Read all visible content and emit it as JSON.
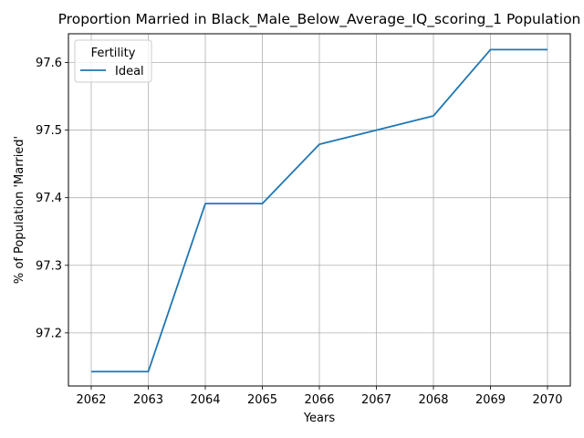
{
  "chart_data": {
    "type": "line",
    "title": "Proportion Married in Black_Male_Below_Average_IQ_scoring_1 Population",
    "xlabel": "Years",
    "ylabel": "% of Population 'Married'",
    "x": [
      2062,
      2063,
      2064,
      2065,
      2066,
      2067,
      2068,
      2069,
      2070
    ],
    "xticks": [
      "2062",
      "2063",
      "2064",
      "2065",
      "2066",
      "2067",
      "2068",
      "2069",
      "2070"
    ],
    "yticks": [
      "97.2",
      "97.3",
      "97.4",
      "97.5",
      "97.6"
    ],
    "xlim": [
      2061.6,
      2070.4
    ],
    "ylim": [
      97.1215,
      97.6425
    ],
    "grid": true,
    "legend": {
      "title": "Fertility",
      "placement": "top-left"
    },
    "series": [
      {
        "name": "Ideal",
        "color": "#1f77b4",
        "values": [
          97.1428,
          97.1428,
          97.3913,
          97.3913,
          97.479,
          97.5,
          97.521,
          97.619,
          97.619
        ]
      }
    ]
  }
}
